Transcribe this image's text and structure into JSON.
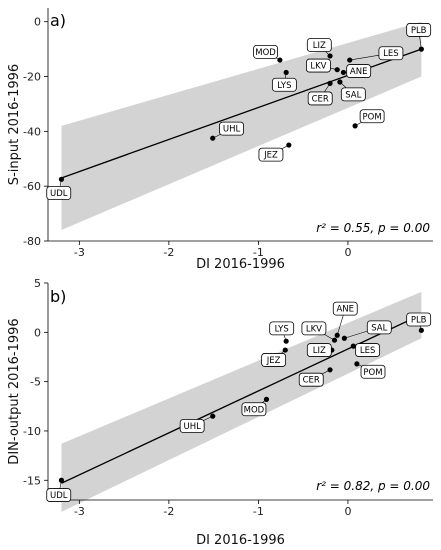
{
  "chart_data": [
    {
      "type": "scatter",
      "panel_label": "a)",
      "xlabel": "DI 2016-1996",
      "ylabel": "S-input 2016-1996",
      "xlim": [
        -3.35,
        0.95
      ],
      "ylim": [
        -80,
        5
      ],
      "xticks": [
        -3,
        -2,
        -1,
        0
      ],
      "xtick_labels": [
        "-3",
        "-2",
        "-1",
        "0"
      ],
      "yticks": [
        0,
        -20,
        -40,
        -60,
        -80
      ],
      "ytick_labels": [
        "0",
        "-20",
        "-40",
        "-60",
        "-80"
      ],
      "points": [
        {
          "label": "PLB",
          "x": 0.82,
          "y": -10,
          "lx": 0.79,
          "ly": -3
        },
        {
          "label": "LES",
          "x": 0.02,
          "y": -14,
          "lx": 0.48,
          "ly": -11.5
        },
        {
          "label": "LIZ",
          "x": -0.2,
          "y": -12.5,
          "lx": -0.32,
          "ly": -8.5
        },
        {
          "label": "MOD",
          "x": -0.76,
          "y": -14,
          "lx": -0.92,
          "ly": -11
        },
        {
          "label": "LKV",
          "x": -0.12,
          "y": -17.5,
          "lx": -0.33,
          "ly": -16
        },
        {
          "label": "ANE",
          "x": -0.05,
          "y": -18.5,
          "lx": 0.12,
          "ly": -18
        },
        {
          "label": "LYS",
          "x": -0.69,
          "y": -18.5,
          "lx": -0.71,
          "ly": -23
        },
        {
          "label": "SAL",
          "x": -0.09,
          "y": -22,
          "lx": 0.06,
          "ly": -26.5
        },
        {
          "label": "CER",
          "x": -0.2,
          "y": -22.5,
          "lx": -0.31,
          "ly": -28
        },
        {
          "label": "POM",
          "x": 0.08,
          "y": -38,
          "lx": 0.27,
          "ly": -34.5
        },
        {
          "label": "UHL",
          "x": -1.51,
          "y": -42.5,
          "lx": -1.3,
          "ly": -39
        },
        {
          "label": "JEZ",
          "x": -0.66,
          "y": -45,
          "lx": -0.86,
          "ly": -48.5
        },
        {
          "label": "UDL",
          "x": -3.2,
          "y": -57.5,
          "lx": -3.23,
          "ly": -62.5
        }
      ],
      "fit_line": [
        [
          -3.2,
          -57
        ],
        [
          0.82,
          -10
        ]
      ],
      "ci_band": {
        "x": [
          -3.2,
          0.82
        ],
        "upper": [
          -38,
          0
        ],
        "lower": [
          -76,
          -20
        ]
      },
      "annotation": "r² = 0.55, p = 0.00"
    },
    {
      "type": "scatter",
      "panel_label": "b)",
      "xlabel": "DI 2016-1996",
      "ylabel": "DIN-output 2016-1996",
      "xlim": [
        -3.35,
        0.95
      ],
      "ylim": [
        -17,
        5
      ],
      "xticks": [
        -3,
        -2,
        -1,
        0
      ],
      "xtick_labels": [
        "-3",
        "-2",
        "-1",
        "0"
      ],
      "yticks": [
        5,
        0,
        -5,
        -10,
        -15
      ],
      "ytick_labels": [
        "5",
        "0",
        "-5",
        "-10",
        "-15"
      ],
      "points": [
        {
          "label": "PLB",
          "x": 0.82,
          "y": 0.2,
          "lx": 0.79,
          "ly": 1.3
        },
        {
          "label": "ANE",
          "x": -0.12,
          "y": -0.3,
          "lx": -0.03,
          "ly": 2.4
        },
        {
          "label": "LKV",
          "x": -0.15,
          "y": -0.8,
          "lx": -0.38,
          "ly": 0.4
        },
        {
          "label": "SAL",
          "x": -0.04,
          "y": -0.6,
          "lx": 0.35,
          "ly": 0.5
        },
        {
          "label": "LYS",
          "x": -0.69,
          "y": -0.9,
          "lx": -0.74,
          "ly": 0.4
        },
        {
          "label": "LIZ",
          "x": -0.18,
          "y": -1.8,
          "lx": -0.32,
          "ly": -1.8
        },
        {
          "label": "JEZ",
          "x": -0.7,
          "y": -1.8,
          "lx": -0.83,
          "ly": -2.8
        },
        {
          "label": "LES",
          "x": 0.06,
          "y": -1.4,
          "lx": 0.22,
          "ly": -1.8
        },
        {
          "label": "POM",
          "x": 0.1,
          "y": -3.2,
          "lx": 0.28,
          "ly": -4.0
        },
        {
          "label": "CER",
          "x": -0.2,
          "y": -3.8,
          "lx": -0.41,
          "ly": -4.8
        },
        {
          "label": "MOD",
          "x": -0.91,
          "y": -6.8,
          "lx": -1.05,
          "ly": -7.8
        },
        {
          "label": "UHL",
          "x": -1.51,
          "y": -8.5,
          "lx": -1.74,
          "ly": -9.5
        },
        {
          "label": "UDL",
          "x": -3.2,
          "y": -15,
          "lx": -3.23,
          "ly": -16.5
        }
      ],
      "fit_line": [
        [
          -3.2,
          -15.3
        ],
        [
          0.82,
          1.8
        ]
      ],
      "ci_band": {
        "x": [
          -3.2,
          0.82
        ],
        "upper": [
          -11.3,
          4.1
        ],
        "lower": [
          -18.2,
          -0.6
        ]
      },
      "annotation": "r² = 0.82, p = 0.00"
    }
  ]
}
